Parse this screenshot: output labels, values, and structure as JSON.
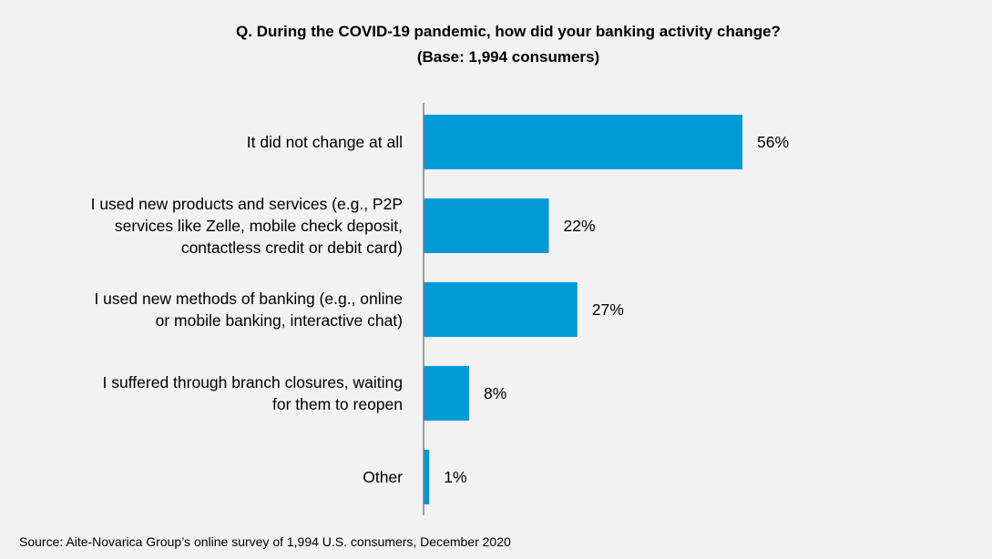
{
  "chart_data": {
    "type": "bar",
    "orientation": "horizontal",
    "title": "Q. During the COVID-19 pandemic, how did your banking activity change?",
    "subtitle": "(Base: 1,994 consumers)",
    "categories": [
      [
        "It did not change at all"
      ],
      [
        "I used new products and services (e.g., P2P",
        "services like Zelle, mobile check deposit,",
        "contactless credit or debit card)"
      ],
      [
        "I used new methods of banking (e.g., online",
        "or mobile banking, interactive chat)"
      ],
      [
        "I suffered through branch closures, waiting",
        "for them to reopen"
      ],
      [
        "Other"
      ]
    ],
    "values": [
      56,
      22,
      27,
      8,
      1
    ],
    "value_labels": [
      "56%",
      "22%",
      "27%",
      "8%",
      "1%"
    ],
    "xlim": [
      0,
      100
    ],
    "bar_color": "#009ad9",
    "axis_color": "#7f7f7f",
    "grid": false,
    "legend": "none"
  },
  "footer": {
    "source": "Source: Aite-Novarica Group’s online survey of 1,994 U.S. consumers, December 2020"
  }
}
